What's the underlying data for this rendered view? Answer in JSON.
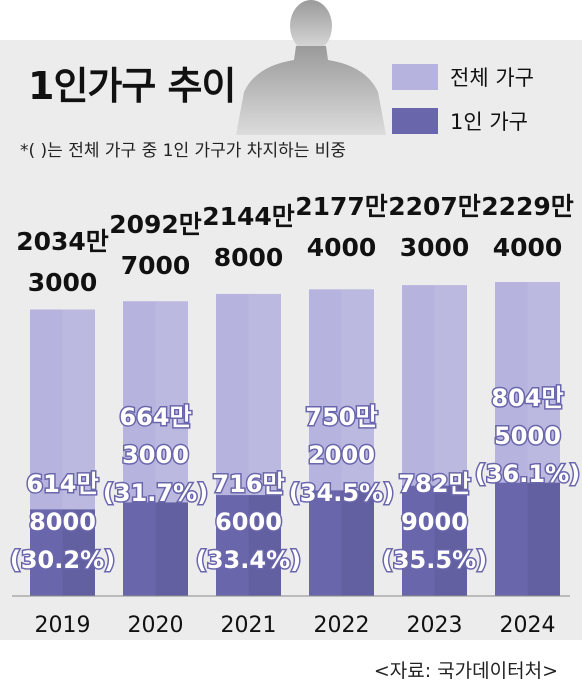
{
  "title": "1인가구 추이",
  "note": "*( )는 전체 가구 중 1인 가구가 차지하는 비중",
  "source": "<자료: 국가데이터처>",
  "colors": {
    "background": "#ececec",
    "total_bar": "#b6b4de",
    "single_bar": "#6a66ac",
    "label_outline": "#6a66ac"
  },
  "legend": [
    {
      "label": "전체 가구",
      "color": "#b6b4de"
    },
    {
      "label": "1인 가구",
      "color": "#6a66ac"
    }
  ],
  "chart_data": {
    "type": "bar",
    "title": "1인가구 추이",
    "categories": [
      "2019",
      "2020",
      "2021",
      "2022",
      "2023",
      "2024"
    ],
    "series": [
      {
        "name": "전체 가구",
        "values": [
          20343000,
          20927000,
          21448000,
          21774000,
          22073000,
          22294000
        ]
      },
      {
        "name": "1인 가구",
        "values": [
          6148000,
          6643000,
          7166000,
          7502000,
          7829000,
          8045000
        ]
      }
    ],
    "total_labels": [
      [
        "2034만",
        "3000"
      ],
      [
        "2092만",
        "7000"
      ],
      [
        "2144만",
        "8000"
      ],
      [
        "2177만",
        "4000"
      ],
      [
        "2207만",
        "3000"
      ],
      [
        "2229만",
        "4000"
      ]
    ],
    "single_labels": [
      [
        "614만",
        "8000",
        "(30.2%)"
      ],
      [
        "664만",
        "3000",
        "(31.7%)"
      ],
      [
        "716만",
        "6000",
        "(33.4%)"
      ],
      [
        "750만",
        "2000",
        "(34.5%)"
      ],
      [
        "782만",
        "9000",
        "(35.5%)"
      ],
      [
        "804만",
        "5000",
        "(36.1%)"
      ]
    ],
    "single_share_pct": [
      30.2,
      31.7,
      33.4,
      34.5,
      35.5,
      36.1
    ],
    "grid": false,
    "legend_position": "top-right"
  }
}
